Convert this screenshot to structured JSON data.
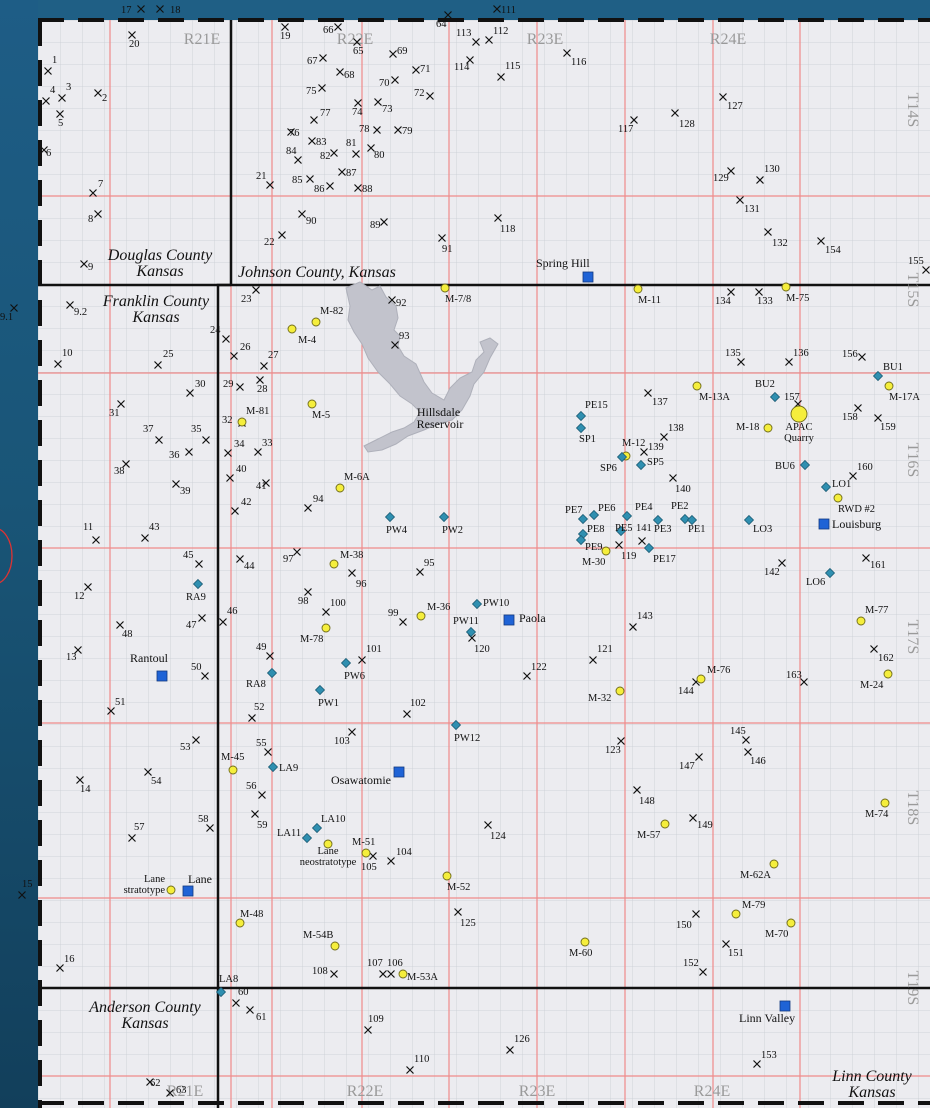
{
  "counties": {
    "douglas": "Douglas County\nKansas",
    "johnson": "Johnson County, Kansas",
    "franklin": "Franklin County\nKansas",
    "anderson": "Anderson County\nKansas",
    "linn": "Linn County\nKansas"
  },
  "ranges_top": [
    "R21E",
    "R22E",
    "R23E",
    "R24E"
  ],
  "ranges_bottom": [
    "R21E",
    "R22E",
    "R23E",
    "R24E"
  ],
  "townships": [
    "T14S",
    "T15S",
    "T16S",
    "T17S",
    "T18S",
    "T19S"
  ],
  "reservoir_label": "Hillsdale\nReservoir",
  "towns": [
    {
      "name": "Spring Hill"
    },
    {
      "name": "Louisburg"
    },
    {
      "name": "Paola"
    },
    {
      "name": "Rantoul"
    },
    {
      "name": "Osawatomie"
    },
    {
      "name": "Lane"
    },
    {
      "name": "Linn Valley"
    }
  ],
  "wells": [
    "1",
    "2",
    "3",
    "4",
    "5",
    "6",
    "7",
    "8",
    "9",
    "9.1",
    "9.2",
    "10",
    "11",
    "12",
    "13",
    "14",
    "15",
    "16",
    "17",
    "18",
    "19",
    "20",
    "21",
    "22",
    "23",
    "24",
    "25",
    "26",
    "27",
    "28",
    "29",
    "30",
    "31",
    "32",
    "33",
    "34",
    "35",
    "36",
    "37",
    "38",
    "39",
    "40",
    "41",
    "42",
    "43",
    "44",
    "45",
    "46",
    "47",
    "48",
    "49",
    "50",
    "51",
    "52",
    "53",
    "54",
    "55",
    "56",
    "57",
    "58",
    "59",
    "60",
    "61",
    "62",
    "63",
    "64",
    "65",
    "66",
    "67",
    "68",
    "69",
    "70",
    "71",
    "72",
    "73",
    "74",
    "75",
    "76",
    "77",
    "78",
    "79",
    "80",
    "81",
    "82",
    "83",
    "84",
    "85",
    "86",
    "87",
    "88",
    "89",
    "90",
    "91",
    "92",
    "93",
    "94",
    "95",
    "96",
    "97",
    "98",
    "99",
    "100",
    "101",
    "102",
    "103",
    "104",
    "105",
    "106",
    "107",
    "108",
    "109",
    "110",
    "111",
    "112",
    "113",
    "114",
    "115",
    "116",
    "117",
    "118",
    "119",
    "120",
    "121",
    "122",
    "123",
    "124",
    "125",
    "126",
    "127",
    "128",
    "129",
    "130",
    "131",
    "132",
    "133",
    "134",
    "135",
    "136",
    "137",
    "138",
    "139",
    "140",
    "141",
    "142",
    "143",
    "144",
    "145",
    "146",
    "147",
    "148",
    "149",
    "150",
    "151",
    "152",
    "153",
    "154",
    "155",
    "156",
    "157",
    "158",
    "159",
    "160",
    "161",
    "162",
    "163"
  ],
  "outcrops": [
    "M-7/8",
    "M-11",
    "M-75",
    "M-82",
    "M-4",
    "M-5",
    "M-81",
    "M-6A",
    "M-13A",
    "M-17A",
    "M-18",
    "APAC\nQuarry",
    "M-12",
    "RWD #2",
    "M-30",
    "M-38",
    "M-36",
    "M-78",
    "M-77",
    "M-24",
    "M-76",
    "M-32",
    "M-45",
    "M-74",
    "M-57",
    "M-51",
    "Lane\nneostratotype",
    "Lane\nstratotype",
    "M-52",
    "M-62A",
    "M-48",
    "M-79",
    "M-70",
    "M-54B",
    "M-60",
    "M-53A"
  ],
  "cores": [
    "BU1",
    "BU2",
    "BU6",
    "LO1",
    "LO3",
    "LO6",
    "PE15",
    "SP1",
    "SP5",
    "SP6",
    "PE7",
    "PE6",
    "PE4",
    "PE2",
    "PE8",
    "PE9",
    "PE5",
    "PE3",
    "PE1",
    "PE17",
    "PW4",
    "PW2",
    "PW10",
    "PW11",
    "RA9",
    "RA8",
    "PW6",
    "PW1",
    "PW12",
    "LA9",
    "LA10",
    "LA11",
    "LA8"
  ],
  "colors": {
    "background": "#ececf0",
    "grid_minor": "#c9cdd3",
    "grid_section": "#f08a8a",
    "county_line": "#111111",
    "reservoir": "#c2c3cc",
    "town": "#1f63d6",
    "core": "#2f8fb0",
    "outcrop": "#f5ee3c",
    "page_background": "#1f5f85"
  }
}
